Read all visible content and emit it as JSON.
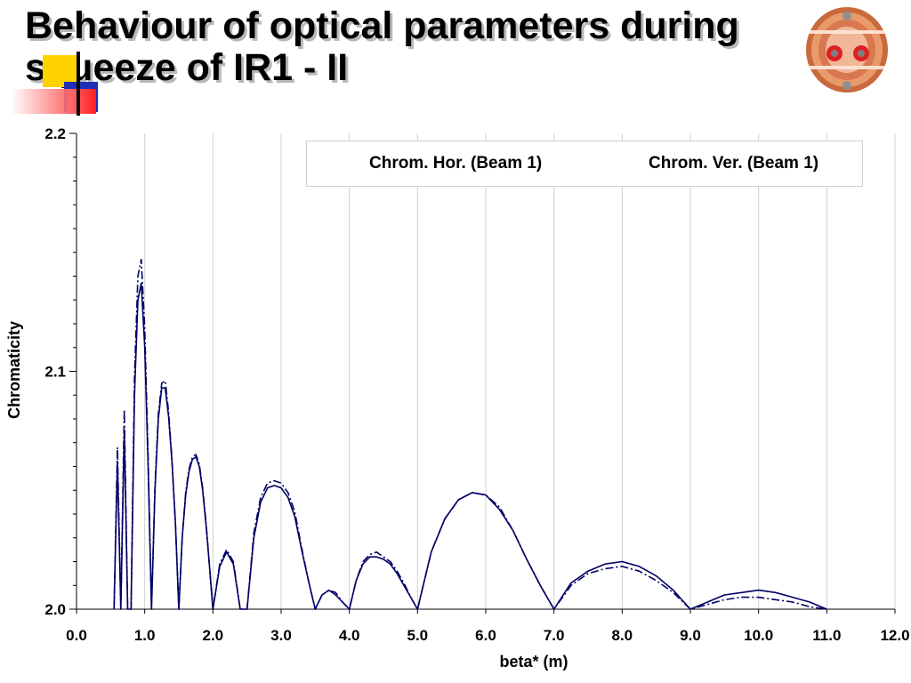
{
  "slide": {
    "title_line1": "Behaviour of optical parameters during",
    "title_line2": "squeeze of IR1 - II"
  },
  "colors": {
    "series_color": "#000066",
    "grid": "#d0d0d0",
    "title_shadow": "#b8b8b8"
  },
  "chart_data": {
    "type": "line",
    "title": "",
    "xlabel": "beta* (m)",
    "ylabel": "Chromaticity",
    "xlim": [
      0.0,
      12.0
    ],
    "ylim": [
      2.0,
      2.2
    ],
    "xticks": [
      "0.0",
      "1.0",
      "2.0",
      "3.0",
      "4.0",
      "5.0",
      "6.0",
      "7.0",
      "8.0",
      "9.0",
      "10.0",
      "11.0",
      "12.0"
    ],
    "yticks": [
      "2.0",
      "2.1",
      "2.2"
    ],
    "grid": "vertical",
    "legend_position": "top-right",
    "series": [
      {
        "name": "Chrom. Hor. (Beam 1)",
        "style": "solid",
        "x": [
          0.55,
          0.6,
          0.65,
          0.7,
          0.75,
          0.8,
          0.85,
          0.9,
          0.95,
          1.0,
          1.05,
          1.1,
          1.15,
          1.2,
          1.25,
          1.3,
          1.35,
          1.4,
          1.45,
          1.5,
          1.55,
          1.6,
          1.65,
          1.7,
          1.75,
          1.8,
          1.85,
          1.9,
          1.95,
          2.0,
          2.1,
          2.2,
          2.3,
          2.4,
          2.5,
          2.6,
          2.7,
          2.8,
          2.9,
          3.0,
          3.1,
          3.2,
          3.3,
          3.4,
          3.5,
          3.6,
          3.7,
          3.8,
          3.9,
          4.0,
          4.1,
          4.2,
          4.3,
          4.4,
          4.5,
          4.6,
          4.7,
          4.8,
          4.9,
          5.0,
          5.2,
          5.4,
          5.6,
          5.8,
          6.0,
          6.2,
          6.4,
          6.6,
          6.8,
          7.0,
          7.25,
          7.5,
          7.75,
          8.0,
          8.25,
          8.5,
          8.75,
          9.0,
          9.25,
          9.5,
          9.75,
          10.0,
          10.25,
          10.5,
          10.75,
          11.0
        ],
        "values": [
          2.0,
          2.062,
          2.0,
          2.075,
          2.0,
          2.0,
          2.09,
          2.13,
          2.137,
          2.11,
          2.06,
          2.0,
          2.05,
          2.08,
          2.093,
          2.093,
          2.081,
          2.062,
          2.036,
          2.0,
          2.03,
          2.048,
          2.058,
          2.063,
          2.064,
          2.06,
          2.05,
          2.035,
          2.018,
          2.0,
          2.018,
          2.024,
          2.019,
          2.0,
          2.0,
          2.03,
          2.045,
          2.051,
          2.052,
          2.051,
          2.047,
          2.039,
          2.025,
          2.012,
          2.0,
          2.006,
          2.008,
          2.006,
          2.003,
          2.0,
          2.012,
          2.019,
          2.022,
          2.022,
          2.021,
          2.019,
          2.015,
          2.01,
          2.005,
          2.0,
          2.024,
          2.038,
          2.046,
          2.049,
          2.048,
          2.042,
          2.033,
          2.021,
          2.01,
          2.0,
          2.011,
          2.016,
          2.019,
          2.02,
          2.018,
          2.014,
          2.008,
          2.0,
          2.003,
          2.006,
          2.007,
          2.008,
          2.007,
          2.005,
          2.003,
          2.0
        ]
      },
      {
        "name": "Chrom. Ver. (Beam 1)",
        "style": "dash-dot",
        "x": [
          0.55,
          0.6,
          0.65,
          0.7,
          0.75,
          0.8,
          0.85,
          0.9,
          0.95,
          1.0,
          1.05,
          1.1,
          1.15,
          1.2,
          1.25,
          1.3,
          1.35,
          1.4,
          1.45,
          1.5,
          1.55,
          1.6,
          1.65,
          1.7,
          1.75,
          1.8,
          1.85,
          1.9,
          1.95,
          2.0,
          2.1,
          2.2,
          2.3,
          2.4,
          2.5,
          2.6,
          2.7,
          2.8,
          2.9,
          3.0,
          3.1,
          3.2,
          3.3,
          3.4,
          3.5,
          3.6,
          3.7,
          3.8,
          3.9,
          4.0,
          4.1,
          4.2,
          4.3,
          4.4,
          4.5,
          4.6,
          4.7,
          4.8,
          4.9,
          5.0,
          5.2,
          5.4,
          5.6,
          5.8,
          6.0,
          6.2,
          6.4,
          6.6,
          6.8,
          7.0,
          7.25,
          7.5,
          7.75,
          8.0,
          8.25,
          8.5,
          8.75,
          9.0,
          9.25,
          9.5,
          9.75,
          10.0,
          10.25,
          10.5,
          10.75,
          11.0
        ],
        "values": [
          2.0,
          2.068,
          2.0,
          2.084,
          2.0,
          2.0,
          2.098,
          2.14,
          2.147,
          2.118,
          2.064,
          2.0,
          2.052,
          2.082,
          2.095,
          2.096,
          2.083,
          2.063,
          2.036,
          2.0,
          2.03,
          2.049,
          2.059,
          2.064,
          2.065,
          2.061,
          2.051,
          2.036,
          2.018,
          2.0,
          2.019,
          2.025,
          2.02,
          2.0,
          2.0,
          2.032,
          2.047,
          2.053,
          2.054,
          2.053,
          2.049,
          2.041,
          2.026,
          2.012,
          2.0,
          2.006,
          2.008,
          2.007,
          2.003,
          2.0,
          2.012,
          2.02,
          2.023,
          2.024,
          2.022,
          2.02,
          2.016,
          2.011,
          2.005,
          2.0,
          2.024,
          2.038,
          2.046,
          2.049,
          2.048,
          2.043,
          2.033,
          2.021,
          2.01,
          2.0,
          2.01,
          2.015,
          2.017,
          2.018,
          2.016,
          2.012,
          2.007,
          2.0,
          2.002,
          2.004,
          2.005,
          2.005,
          2.004,
          2.003,
          2.001,
          2.0
        ]
      }
    ]
  }
}
